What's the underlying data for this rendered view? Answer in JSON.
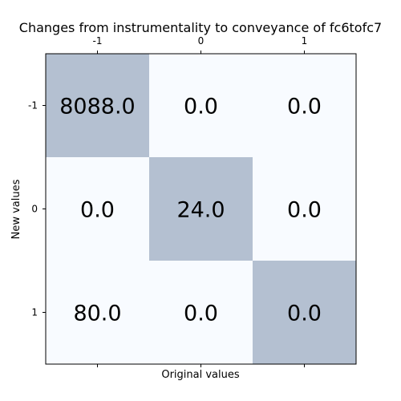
{
  "chart_data": {
    "type": "heatmap",
    "title": "Changes from instrumentality to conveyance of fc6tofc7",
    "xlabel": "Original values",
    "ylabel": "New values",
    "x_categories": [
      "-1",
      "0",
      "1"
    ],
    "y_categories": [
      "-1",
      "0",
      "1"
    ],
    "values": [
      [
        8088.0,
        0.0,
        0.0
      ],
      [
        0.0,
        24.0,
        0.0
      ],
      [
        80.0,
        0.0,
        0.0
      ]
    ],
    "value_labels": [
      [
        "8088.0",
        "0.0",
        "0.0"
      ],
      [
        "0.0",
        "24.0",
        "0.0"
      ],
      [
        "80.0",
        "0.0",
        "0.0"
      ]
    ],
    "highlight_color": "#b4c0d1",
    "background_color": "#f8fbff",
    "x_tick_position": "top",
    "grid": false
  }
}
